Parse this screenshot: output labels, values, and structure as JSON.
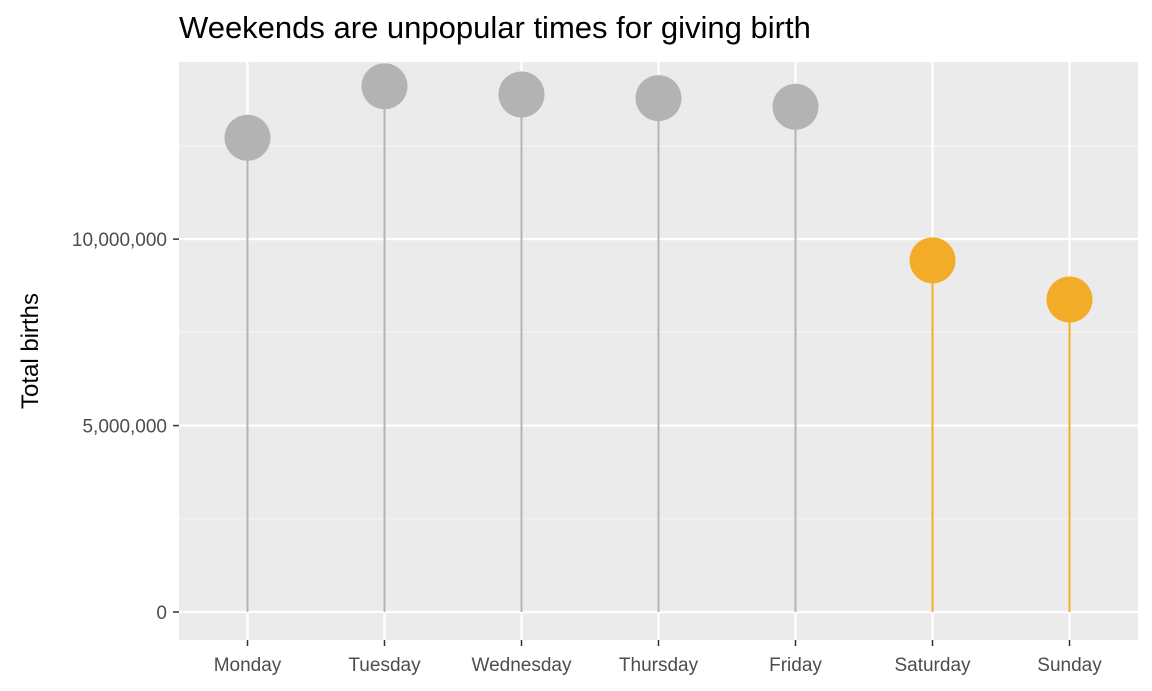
{
  "chart_data": {
    "type": "lollipop",
    "title": "Weekends are unpopular times for giving birth",
    "xlabel": "",
    "ylabel": "Total births",
    "categories": [
      "Monday",
      "Tuesday",
      "Wednesday",
      "Thursday",
      "Friday",
      "Saturday",
      "Sunday"
    ],
    "values": [
      12720000,
      14100000,
      13880000,
      13780000,
      13550000,
      9430000,
      8380000
    ],
    "highlight": [
      false,
      false,
      false,
      false,
      false,
      true,
      true
    ],
    "ylim": [
      -750000,
      14750000
    ],
    "yticks": [
      0,
      5000000,
      10000000
    ],
    "ytick_labels": [
      "0",
      "5,000,000",
      "10,000,000"
    ],
    "grid": true,
    "colors": {
      "panel_background": "#EBEBEB",
      "grid_major": "#FFFFFF",
      "grid_minor": "#F5F5F5",
      "default_point": "#B3B3B3",
      "highlight_point": "#F2AC27",
      "axis_text": "#4D4D4D",
      "tick": "#333333"
    }
  }
}
